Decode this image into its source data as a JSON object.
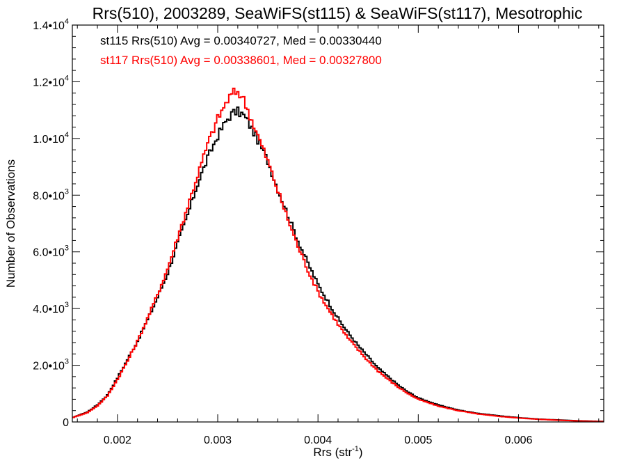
{
  "chart_data": {
    "type": "line",
    "style": "step-histogram",
    "title": "Rrs(510), 2003289, SeaWiFS(st115) & SeaWiFS(st117), Mesotrophic",
    "xlabel": "Rrs (str",
    "xlabel_exp": "-1",
    "xlabel_close": ")",
    "ylabel": "Number of Observations",
    "xlim": [
      0.00155,
      0.00685
    ],
    "ylim": [
      0,
      14000
    ],
    "x_ticks": [
      {
        "value": 0.002,
        "label": "0.002"
      },
      {
        "value": 0.003,
        "label": "0.003"
      },
      {
        "value": 0.004,
        "label": "0.004"
      },
      {
        "value": 0.005,
        "label": "0.005"
      },
      {
        "value": 0.006,
        "label": "0.006"
      }
    ],
    "y_ticks": [
      {
        "value": 0,
        "mant": "0",
        "exp": ""
      },
      {
        "value": 2000,
        "mant": "2.0•10",
        "exp": "3"
      },
      {
        "value": 4000,
        "mant": "4.0•10",
        "exp": "3"
      },
      {
        "value": 6000,
        "mant": "6.0•10",
        "exp": "3"
      },
      {
        "value": 8000,
        "mant": "8.0•10",
        "exp": "3"
      },
      {
        "value": 10000,
        "mant": "1.0•10",
        "exp": "4"
      },
      {
        "value": 12000,
        "mant": "1.2•10",
        "exp": "4"
      },
      {
        "value": 14000,
        "mant": "1.4•10",
        "exp": "4"
      }
    ],
    "series": [
      {
        "name": "st115",
        "legend": "st115 Rrs(510) Avg = 0.00340727, Med = 0.00330440",
        "color": "#000000",
        "points": [
          [
            0.00155,
            150
          ],
          [
            0.0017,
            350
          ],
          [
            0.0018,
            600
          ],
          [
            0.0019,
            950
          ],
          [
            0.002,
            1550
          ],
          [
            0.0021,
            2200
          ],
          [
            0.0022,
            2850
          ],
          [
            0.0023,
            3600
          ],
          [
            0.0024,
            4400
          ],
          [
            0.0025,
            5250
          ],
          [
            0.0026,
            6300
          ],
          [
            0.0027,
            7300
          ],
          [
            0.0028,
            8400
          ],
          [
            0.0029,
            9300
          ],
          [
            0.003,
            10100
          ],
          [
            0.0031,
            10700
          ],
          [
            0.00315,
            10900
          ],
          [
            0.0032,
            10950
          ],
          [
            0.00325,
            10850
          ],
          [
            0.0033,
            10600
          ],
          [
            0.0034,
            9950
          ],
          [
            0.0035,
            9200
          ],
          [
            0.0036,
            8200
          ],
          [
            0.0037,
            7300
          ],
          [
            0.0038,
            6400
          ],
          [
            0.0039,
            5600
          ],
          [
            0.004,
            4850
          ],
          [
            0.0041,
            4250
          ],
          [
            0.0042,
            3650
          ],
          [
            0.0043,
            3150
          ],
          [
            0.0044,
            2700
          ],
          [
            0.0045,
            2300
          ],
          [
            0.0046,
            1900
          ],
          [
            0.0047,
            1600
          ],
          [
            0.0048,
            1300
          ],
          [
            0.0049,
            1050
          ],
          [
            0.005,
            850
          ],
          [
            0.0052,
            600
          ],
          [
            0.0054,
            420
          ],
          [
            0.0056,
            300
          ],
          [
            0.0058,
            220
          ],
          [
            0.006,
            150
          ],
          [
            0.0062,
            100
          ],
          [
            0.0064,
            70
          ],
          [
            0.0066,
            40
          ],
          [
            0.00685,
            20
          ]
        ]
      },
      {
        "name": "st117",
        "legend": "st117 Rrs(510) Avg = 0.00338601, Med = 0.00327800",
        "color": "#ff0000",
        "points": [
          [
            0.00155,
            150
          ],
          [
            0.0017,
            330
          ],
          [
            0.0018,
            570
          ],
          [
            0.0019,
            920
          ],
          [
            0.002,
            1500
          ],
          [
            0.0021,
            2150
          ],
          [
            0.0022,
            2850
          ],
          [
            0.0023,
            3650
          ],
          [
            0.0024,
            4500
          ],
          [
            0.0025,
            5400
          ],
          [
            0.0026,
            6500
          ],
          [
            0.0027,
            7600
          ],
          [
            0.0028,
            8700
          ],
          [
            0.0029,
            9800
          ],
          [
            0.003,
            10700
          ],
          [
            0.0031,
            11350
          ],
          [
            0.00315,
            11600
          ],
          [
            0.0032,
            11650
          ],
          [
            0.00325,
            11450
          ],
          [
            0.0033,
            11000
          ],
          [
            0.0034,
            10100
          ],
          [
            0.0035,
            9200
          ],
          [
            0.0036,
            8150
          ],
          [
            0.0037,
            7150
          ],
          [
            0.0038,
            6200
          ],
          [
            0.0039,
            5350
          ],
          [
            0.004,
            4600
          ],
          [
            0.0041,
            4000
          ],
          [
            0.0042,
            3450
          ],
          [
            0.0043,
            2950
          ],
          [
            0.0044,
            2550
          ],
          [
            0.0045,
            2150
          ],
          [
            0.0046,
            1800
          ],
          [
            0.0047,
            1500
          ],
          [
            0.0048,
            1230
          ],
          [
            0.0049,
            1000
          ],
          [
            0.005,
            800
          ],
          [
            0.0052,
            560
          ],
          [
            0.0054,
            400
          ],
          [
            0.0056,
            280
          ],
          [
            0.0058,
            200
          ],
          [
            0.006,
            140
          ],
          [
            0.0062,
            95
          ],
          [
            0.0064,
            60
          ],
          [
            0.0066,
            35
          ],
          [
            0.00685,
            15
          ]
        ]
      }
    ],
    "legend_position": "top-left-inside"
  }
}
